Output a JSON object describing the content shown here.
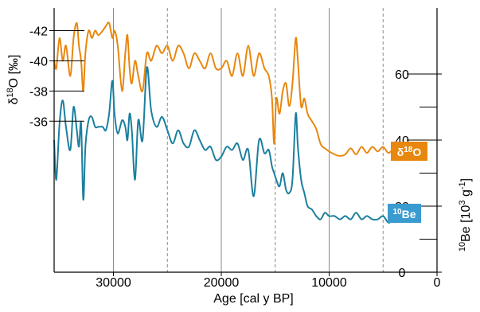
{
  "chart_data": {
    "type": "line",
    "x": {
      "label": "Age [cal y BP]",
      "range": [
        35500,
        0
      ],
      "ticks": [
        30000,
        20000,
        10000,
        0
      ],
      "tick_labels": [
        "30000",
        "20000",
        "10000",
        "0"
      ],
      "solid_gridlines": [
        30000,
        20000,
        10000
      ],
      "dashed_gridlines": [
        25000,
        15000,
        5000
      ]
    },
    "y_left": {
      "label_prefix": "δ",
      "label_sup": "18",
      "label_suffix": "O [‰]",
      "range": [
        -43.5,
        -26
      ],
      "reversed": true,
      "ticks": [
        -42,
        -40,
        -38,
        -36
      ],
      "tick_labels": [
        "-42",
        "-40",
        "-38",
        "-36"
      ]
    },
    "y_right": {
      "label_prefix": "",
      "label_sup1": "10",
      "label_mid": "Be [10",
      "label_sup2": "3",
      "label_end": " g",
      "label_sup3": "-1",
      "label_close": "]",
      "range": [
        0,
        80
      ],
      "ticks": [
        0,
        20,
        40,
        60
      ],
      "tick_labels": [
        "0",
        "20",
        "40",
        "60"
      ],
      "minor_ticks": [
        10,
        30,
        50
      ]
    },
    "series": [
      {
        "name_sup": "18",
        "name_prefix": "δ",
        "name_suffix": "O",
        "axis": "left",
        "color": "#E8870E",
        "x": [
          35500,
          35300,
          35000,
          34700,
          34400,
          34000,
          33700,
          33400,
          33200,
          33000,
          32800,
          32600,
          32300,
          32000,
          31700,
          31400,
          31000,
          30700,
          30400,
          30100,
          29900,
          29600,
          29200,
          28900,
          28700,
          28500,
          28300,
          28000,
          27700,
          27300,
          26900,
          26500,
          26000,
          25500,
          25000,
          24500,
          24000,
          23500,
          23000,
          22500,
          22000,
          21500,
          21000,
          20500,
          20000,
          19500,
          19000,
          18500,
          18000,
          17500,
          17000,
          16500,
          16000,
          15600,
          15300,
          15100,
          14900,
          14600,
          14300,
          14000,
          13700,
          13400,
          13100,
          12900,
          12600,
          12300,
          12000,
          11600,
          11200,
          10800,
          10400,
          10000,
          9500,
          9000,
          8500,
          8000,
          7500,
          7000,
          6500,
          6000,
          5500,
          5000,
          4500,
          4000,
          3500,
          3200
        ],
        "values": [
          -40.0,
          -39.5,
          -41.5,
          -40.0,
          -41.0,
          -39.0,
          -41.5,
          -42.5,
          -41.0,
          -40.0,
          -38.0,
          -40.5,
          -42.0,
          -41.5,
          -42.0,
          -41.7,
          -42.0,
          -42.3,
          -42.5,
          -41.5,
          -42.0,
          -41.0,
          -38.0,
          -40.5,
          -41.7,
          -39.5,
          -38.5,
          -40.0,
          -39.0,
          -38.0,
          -40.5,
          -40.0,
          -41.0,
          -40.5,
          -41.0,
          -40.0,
          -41.0,
          -40.5,
          -39.5,
          -40.5,
          -40.0,
          -39.5,
          -40.5,
          -39.5,
          -39.5,
          -40.0,
          -39.0,
          -40.5,
          -39.0,
          -41.0,
          -39.0,
          -40.5,
          -39.5,
          -39.0,
          -37.5,
          -34.5,
          -37.5,
          -36.5,
          -38.0,
          -38.5,
          -37.0,
          -38.5,
          -41.5,
          -40.0,
          -37.0,
          -37.5,
          -36.5,
          -36.0,
          -35.5,
          -34.5,
          -34.2,
          -34.0,
          -33.8,
          -33.7,
          -33.8,
          -34.2,
          -33.8,
          -34.3,
          -33.9,
          -34.3,
          -34.0,
          -34.3,
          -33.9,
          -34.2,
          -34.3,
          -34.5
        ]
      },
      {
        "name_sup": "10",
        "name_suffix": "Be",
        "axis": "right",
        "color": "#1B7F9E",
        "x": [
          35500,
          35300,
          35000,
          34700,
          34400,
          34000,
          33700,
          33400,
          33200,
          33000,
          32800,
          32600,
          32300,
          32000,
          31700,
          31400,
          31000,
          30700,
          30400,
          30100,
          29900,
          29600,
          29200,
          28900,
          28700,
          28500,
          28300,
          28000,
          27700,
          27300,
          26900,
          26500,
          26000,
          25500,
          25000,
          24500,
          24000,
          23500,
          23000,
          22500,
          22000,
          21500,
          21000,
          20500,
          20000,
          19500,
          19000,
          18500,
          18000,
          17500,
          17000,
          16500,
          16000,
          15600,
          15300,
          15100,
          14900,
          14600,
          14300,
          14000,
          13700,
          13400,
          13100,
          12900,
          12600,
          12300,
          12000,
          11600,
          11200,
          10800,
          10400,
          10000,
          9500,
          9000,
          8500,
          8000,
          7500,
          7000,
          6500,
          6000,
          5500,
          5000,
          4500,
          4000,
          3500,
          3200
        ],
        "values": [
          40,
          28,
          45,
          52,
          44,
          37,
          50,
          43,
          38,
          45,
          22,
          38,
          46,
          47,
          44,
          44,
          44,
          43,
          48,
          58,
          48,
          42,
          46,
          44,
          40,
          48,
          43,
          28,
          46,
          40,
          62,
          49,
          44,
          47,
          43,
          39,
          43,
          39,
          38,
          43,
          40,
          37,
          38,
          34,
          35,
          38,
          37,
          39,
          34,
          37,
          23,
          40,
          36,
          37,
          32,
          30,
          28,
          26,
          30,
          25,
          24,
          28,
          48,
          38,
          28,
          24,
          20,
          19,
          17,
          16,
          18,
          17,
          17,
          16,
          17,
          16,
          18,
          16,
          17,
          16,
          16,
          17,
          15,
          16,
          17,
          17
        ]
      }
    ]
  }
}
